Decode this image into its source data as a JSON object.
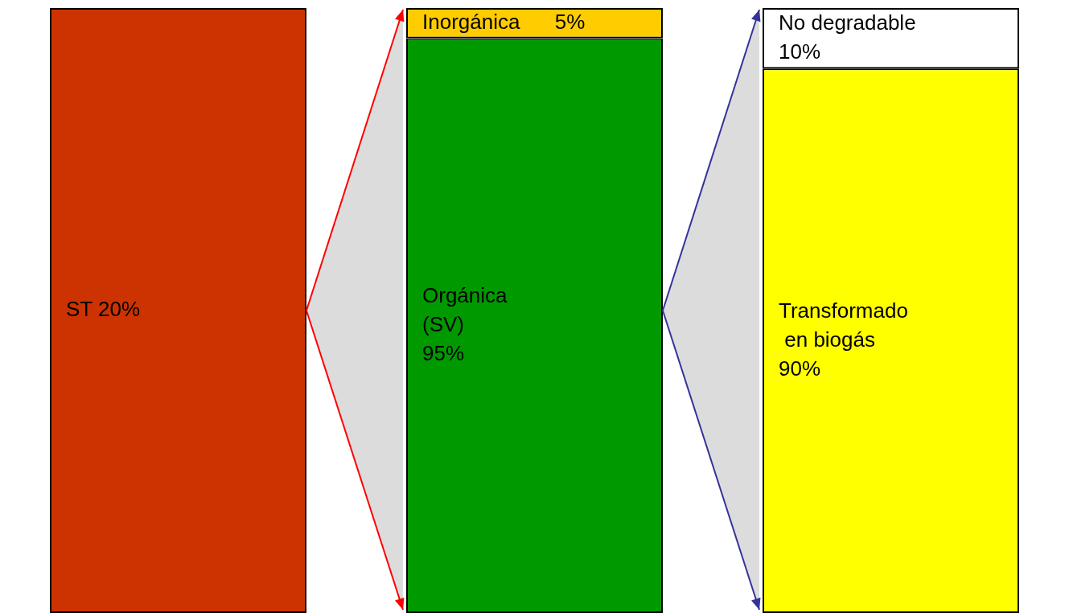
{
  "chart_data": {
    "type": "bar",
    "stacked": true,
    "tick_labels": false,
    "annotations": [
      "ST 20%"
    ],
    "categories": [
      null,
      null,
      null
    ],
    "series": [
      {
        "colors": [
          "#cc3300",
          "#009900",
          "#ffff00"
        ],
        "values": [
          100,
          95,
          90
        ],
        "value_labels": [
          null,
          "Orgánica\n(SV)\n95%",
          "Transformado\n en biogás\n90%"
        ]
      },
      {
        "colors": [
          "#ffcc00",
          "#ffcc00",
          "#ffffff"
        ],
        "values": [
          null,
          5,
          10
        ],
        "value_labels": [
          null,
          "Inorgánica      5%",
          "No degradable\n10%"
        ]
      }
    ]
  }
}
